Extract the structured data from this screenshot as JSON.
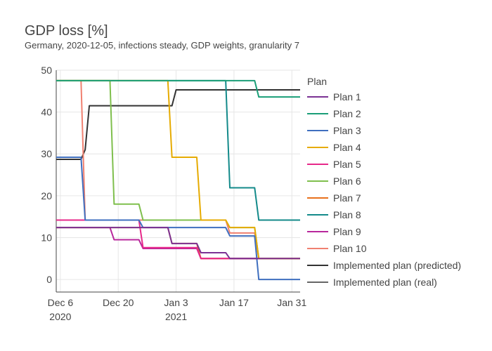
{
  "chart_data": {
    "type": "line",
    "title": "GDP loss [%]",
    "subtitle": "Germany, 2020-12-05, infections steady, GDP weights, granularity 7",
    "legend_title": "Plan",
    "legend_placement": "right",
    "grid": true,
    "x_range": [
      "2020-12-05",
      "2021-02-02"
    ],
    "ylim": [
      -3,
      50
    ],
    "y_ticks": [
      "0",
      "10",
      "20",
      "30",
      "40",
      "50"
    ],
    "x_ticks": [
      {
        "date": "2020-12-06",
        "label": "Dec 6",
        "sublabel": "2020"
      },
      {
        "date": "2020-12-20",
        "label": "Dec 20",
        "sublabel": ""
      },
      {
        "date": "2021-01-03",
        "label": "Jan 3",
        "sublabel": "2021"
      },
      {
        "date": "2021-01-17",
        "label": "Jan 17",
        "sublabel": ""
      },
      {
        "date": "2021-01-31",
        "label": "Jan 31",
        "sublabel": ""
      }
    ],
    "series": [
      {
        "name": "Plan 1",
        "color": "#7b3294",
        "points": [
          [
            "2020-12-05",
            12.4
          ],
          [
            "2020-12-11",
            12.4
          ],
          [
            "2020-12-12",
            12.4
          ],
          [
            "2020-12-18",
            12.4
          ],
          [
            "2020-12-19",
            12.4
          ],
          [
            "2020-12-25",
            12.4
          ],
          [
            "2020-12-26",
            12.4
          ],
          [
            "2021-01-01",
            12.4
          ],
          [
            "2021-01-02",
            8.6
          ],
          [
            "2021-01-08",
            8.6
          ],
          [
            "2021-01-09",
            6.4
          ],
          [
            "2021-01-15",
            6.4
          ],
          [
            "2021-01-16",
            5.0
          ],
          [
            "2021-02-02",
            5.0
          ]
        ]
      },
      {
        "name": "Plan 2",
        "color": "#1a9e77",
        "points": [
          [
            "2020-12-05",
            47.5
          ],
          [
            "2021-01-22",
            47.5
          ],
          [
            "2021-01-23",
            43.6
          ],
          [
            "2021-02-02",
            43.6
          ]
        ]
      },
      {
        "name": "Plan 3",
        "color": "#3f6fbf",
        "points": [
          [
            "2020-12-05",
            29.2
          ],
          [
            "2020-12-11",
            29.2
          ],
          [
            "2020-12-12",
            14.2
          ],
          [
            "2020-12-25",
            14.2
          ],
          [
            "2020-12-26",
            12.4
          ],
          [
            "2021-01-15",
            12.4
          ],
          [
            "2021-01-16",
            10.4
          ],
          [
            "2021-01-22",
            10.4
          ],
          [
            "2021-01-23",
            0
          ],
          [
            "2021-02-02",
            0
          ]
        ]
      },
      {
        "name": "Plan 4",
        "color": "#e6ab02",
        "points": [
          [
            "2020-12-05",
            47.5
          ],
          [
            "2021-01-01",
            47.5
          ],
          [
            "2021-01-02",
            29.2
          ],
          [
            "2021-01-08",
            29.2
          ],
          [
            "2021-01-09",
            14.2
          ],
          [
            "2021-01-15",
            14.2
          ],
          [
            "2021-01-16",
            12.4
          ],
          [
            "2021-01-22",
            12.4
          ],
          [
            "2021-01-23",
            5.0
          ],
          [
            "2021-02-02",
            5.0
          ]
        ]
      },
      {
        "name": "Plan 5",
        "color": "#e7298a",
        "points": [
          [
            "2020-12-05",
            14.2
          ],
          [
            "2020-12-11",
            14.2
          ],
          [
            "2020-12-12",
            14.2
          ],
          [
            "2020-12-25",
            14.2
          ],
          [
            "2020-12-26",
            7.6
          ],
          [
            "2021-01-08",
            7.6
          ],
          [
            "2021-01-09",
            5.0
          ],
          [
            "2021-02-02",
            5.0
          ]
        ]
      },
      {
        "name": "Plan 6",
        "color": "#7fbf4d",
        "points": [
          [
            "2020-12-05",
            47.5
          ],
          [
            "2020-12-18",
            47.5
          ],
          [
            "2020-12-19",
            18.0
          ],
          [
            "2020-12-25",
            18.0
          ],
          [
            "2020-12-26",
            14.2
          ],
          [
            "2021-01-15",
            14.2
          ],
          [
            "2021-01-16",
            12.4
          ],
          [
            "2021-01-22",
            12.4
          ],
          [
            "2021-01-23",
            5.0
          ],
          [
            "2021-02-02",
            5.0
          ]
        ]
      },
      {
        "name": "Plan 7",
        "color": "#e8711c",
        "points": [
          [
            "2020-12-05",
            12.4
          ],
          [
            "2021-01-01",
            12.4
          ],
          [
            "2021-01-02",
            8.6
          ],
          [
            "2021-01-08",
            8.6
          ],
          [
            "2021-01-09",
            5.0
          ],
          [
            "2021-02-02",
            5.0
          ]
        ]
      },
      {
        "name": "Plan 8",
        "color": "#138a8a",
        "points": [
          [
            "2020-12-05",
            47.5
          ],
          [
            "2021-01-15",
            47.5
          ],
          [
            "2021-01-16",
            21.9
          ],
          [
            "2021-01-22",
            21.9
          ],
          [
            "2021-01-23",
            14.2
          ],
          [
            "2021-02-02",
            14.2
          ]
        ]
      },
      {
        "name": "Plan 9",
        "color": "#b8279c",
        "points": [
          [
            "2020-12-05",
            12.4
          ],
          [
            "2020-12-18",
            12.4
          ],
          [
            "2020-12-19",
            9.5
          ],
          [
            "2020-12-25",
            9.5
          ],
          [
            "2020-12-26",
            7.4
          ],
          [
            "2021-01-08",
            7.4
          ],
          [
            "2021-01-09",
            5.0
          ],
          [
            "2021-02-02",
            5.0
          ]
        ]
      },
      {
        "name": "Plan 10",
        "color": "#f08070",
        "points": [
          [
            "2020-12-05",
            47.5
          ],
          [
            "2020-12-11",
            47.5
          ],
          [
            "2020-12-12",
            14.2
          ],
          [
            "2021-01-15",
            14.2
          ],
          [
            "2021-01-16",
            11.1
          ],
          [
            "2021-01-22",
            11.1
          ],
          [
            "2021-01-23",
            5.0
          ],
          [
            "2021-02-02",
            5.0
          ]
        ]
      },
      {
        "name": "Implemented plan (predicted)",
        "color": "#333333",
        "points": [
          [
            "2020-12-05",
            28.7
          ],
          [
            "2020-12-11",
            28.7
          ],
          [
            "2020-12-12",
            31.0
          ],
          [
            "2020-12-13",
            41.5
          ],
          [
            "2021-01-02",
            41.5
          ],
          [
            "2021-01-03",
            45.3
          ],
          [
            "2021-02-02",
            45.3
          ]
        ]
      },
      {
        "name": "Implemented plan (real)",
        "color": "#666666",
        "points": []
      }
    ]
  }
}
